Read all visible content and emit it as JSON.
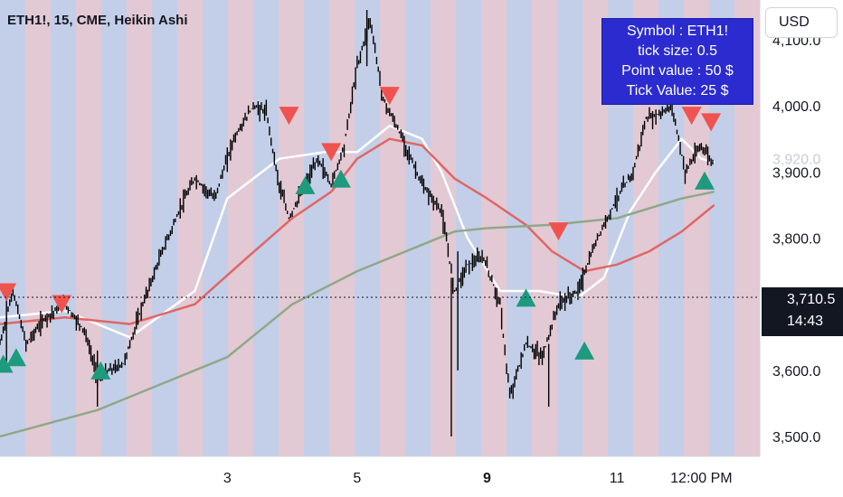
{
  "header": {
    "symbol": "ETH1!, 15, CME, Heikin Ashi",
    "currency": "USD"
  },
  "info_box": {
    "lines": [
      "Symbol : ETH1!",
      "tick size: 0.5",
      "Point value : 50 $",
      "Tick Value: 25 $"
    ],
    "background": "#2b2bd0"
  },
  "last_price": {
    "price": "3,710.5",
    "countdown": "14:43"
  },
  "ghost_label": "3,920.0",
  "colors": {
    "blue_band": "#c3cfe8",
    "red_band": "#e3c9d3",
    "candles": "#000000",
    "white_ma": "#ffffff",
    "red_ma": "#e06666",
    "green_ma": "#8fa889",
    "buy_arrow": "#1e9a7e",
    "sell_arrow": "#ef5350"
  },
  "chart_data": {
    "type": "line",
    "title": "ETH1!, 15, CME, Heikin Ashi",
    "yaxis": {
      "ticks": [
        3500,
        3600,
        3700,
        3800,
        3900,
        4000,
        4100
      ],
      "tick_labels": [
        "3,500.0",
        "3,600.0",
        "",
        "3,800.0",
        "3,900.0",
        "4,000.0",
        "4,100.0"
      ],
      "range": [
        3470,
        4160
      ]
    },
    "xaxis": {
      "ticks": [
        {
          "t": 3,
          "label": "3",
          "bold": false
        },
        {
          "t": 5,
          "label": "5",
          "bold": false
        },
        {
          "t": 7,
          "label": "9",
          "bold": true
        },
        {
          "t": 9,
          "label": "11",
          "bold": false
        },
        {
          "t": 10.3,
          "label": "12:00 PM",
          "bold": false
        }
      ],
      "range": [
        -0.5,
        11.2
      ]
    },
    "price_line": 3710.5,
    "bands": [
      "b",
      "r",
      "b",
      "r",
      "b",
      "r",
      "b",
      "r",
      "b",
      "r",
      "b",
      "r",
      "b",
      "r",
      "b",
      "r",
      "b",
      "r",
      "b",
      "r",
      "b",
      "r",
      "b",
      "r",
      "b",
      "r",
      "b",
      "r",
      "b",
      "r"
    ],
    "price_path": [
      {
        "t": -0.5,
        "v": 3640
      },
      {
        "t": -0.3,
        "v": 3720
      },
      {
        "t": -0.1,
        "v": 3640
      },
      {
        "t": 0.2,
        "v": 3680
      },
      {
        "t": 0.5,
        "v": 3700
      },
      {
        "t": 0.8,
        "v": 3660
      },
      {
        "t": 1.0,
        "v": 3590
      },
      {
        "t": 1.4,
        "v": 3610
      },
      {
        "t": 1.7,
        "v": 3700
      },
      {
        "t": 2.0,
        "v": 3780
      },
      {
        "t": 2.3,
        "v": 3850
      },
      {
        "t": 2.5,
        "v": 3890
      },
      {
        "t": 2.8,
        "v": 3860
      },
      {
        "t": 3.1,
        "v": 3950
      },
      {
        "t": 3.4,
        "v": 4000
      },
      {
        "t": 3.6,
        "v": 3990
      },
      {
        "t": 3.8,
        "v": 3880
      },
      {
        "t": 3.95,
        "v": 3830
      },
      {
        "t": 4.2,
        "v": 3880
      },
      {
        "t": 4.4,
        "v": 3920
      },
      {
        "t": 4.6,
        "v": 3880
      },
      {
        "t": 4.8,
        "v": 3940
      },
      {
        "t": 5.0,
        "v": 4060
      },
      {
        "t": 5.2,
        "v": 4130
      },
      {
        "t": 5.4,
        "v": 4010
      },
      {
        "t": 5.7,
        "v": 3950
      },
      {
        "t": 6.0,
        "v": 3880
      },
      {
        "t": 6.3,
        "v": 3840
      },
      {
        "t": 6.5,
        "v": 3720
      },
      {
        "t": 6.7,
        "v": 3760
      },
      {
        "t": 6.95,
        "v": 3770
      },
      {
        "t": 7.2,
        "v": 3700
      },
      {
        "t": 7.35,
        "v": 3560
      },
      {
        "t": 7.6,
        "v": 3640
      },
      {
        "t": 7.85,
        "v": 3620
      },
      {
        "t": 8.1,
        "v": 3700
      },
      {
        "t": 8.4,
        "v": 3720
      },
      {
        "t": 8.7,
        "v": 3800
      },
      {
        "t": 9.0,
        "v": 3860
      },
      {
        "t": 9.25,
        "v": 3900
      },
      {
        "t": 9.45,
        "v": 3980
      },
      {
        "t": 9.7,
        "v": 3990
      },
      {
        "t": 9.85,
        "v": 4000
      },
      {
        "t": 10.05,
        "v": 3900
      },
      {
        "t": 10.3,
        "v": 3940
      },
      {
        "t": 10.5,
        "v": 3910
      }
    ],
    "spikes": [
      {
        "t": -0.4,
        "lo": 3600,
        "hi": 3730
      },
      {
        "t": 1.0,
        "lo": 3545,
        "hi": 3630
      },
      {
        "t": 6.55,
        "lo": 3600,
        "hi": 3780
      },
      {
        "t": 6.45,
        "lo": 3500,
        "hi": 3740
      },
      {
        "t": 7.95,
        "lo": 3545,
        "hi": 3640
      },
      {
        "t": 5.15,
        "lo": 4060,
        "hi": 4145
      }
    ],
    "series": [
      {
        "values": [
          [
            -0.5,
            3680
          ],
          [
            0.5,
            3690
          ],
          [
            1.5,
            3650
          ],
          [
            2.5,
            3720
          ],
          [
            3.0,
            3860
          ],
          [
            3.8,
            3920
          ],
          [
            4.5,
            3930
          ],
          [
            5.0,
            3930
          ],
          [
            5.5,
            3970
          ],
          [
            6.0,
            3950
          ],
          [
            6.3,
            3900
          ],
          [
            6.7,
            3800
          ],
          [
            7.2,
            3720
          ],
          [
            7.8,
            3720
          ],
          [
            8.4,
            3710
          ],
          [
            8.8,
            3740
          ],
          [
            9.2,
            3840
          ],
          [
            9.6,
            3900
          ],
          [
            10.0,
            3950
          ],
          [
            10.3,
            3920
          ],
          [
            10.5,
            3915
          ]
        ]
      },
      {
        "values": [
          [
            -0.5,
            3670
          ],
          [
            0.5,
            3680
          ],
          [
            1.5,
            3670
          ],
          [
            2.5,
            3700
          ],
          [
            3.3,
            3770
          ],
          [
            4.0,
            3830
          ],
          [
            4.6,
            3870
          ],
          [
            5.0,
            3920
          ],
          [
            5.5,
            3950
          ],
          [
            6.0,
            3940
          ],
          [
            6.5,
            3890
          ],
          [
            7.0,
            3860
          ],
          [
            7.6,
            3820
          ],
          [
            8.0,
            3780
          ],
          [
            8.5,
            3750
          ],
          [
            9.0,
            3760
          ],
          [
            9.5,
            3780
          ],
          [
            10.0,
            3810
          ],
          [
            10.5,
            3850
          ]
        ]
      },
      {
        "values": [
          [
            -0.5,
            3500
          ],
          [
            1.0,
            3540
          ],
          [
            2.0,
            3580
          ],
          [
            3.0,
            3620
          ],
          [
            4.0,
            3700
          ],
          [
            5.0,
            3750
          ],
          [
            6.0,
            3790
          ],
          [
            6.5,
            3810
          ],
          [
            7.0,
            3815
          ],
          [
            8.0,
            3820
          ],
          [
            9.0,
            3830
          ],
          [
            10.0,
            3860
          ],
          [
            10.5,
            3870
          ]
        ]
      }
    ],
    "buy_signals": [
      [
        -0.45,
        3610
      ],
      [
        -0.25,
        3620
      ],
      [
        1.05,
        3600
      ],
      [
        4.2,
        3880
      ],
      [
        4.75,
        3890
      ],
      [
        7.6,
        3710
      ],
      [
        8.5,
        3630
      ],
      [
        10.35,
        3887
      ]
    ],
    "sell_signals": [
      [
        -0.4,
        3718
      ],
      [
        0.45,
        3700
      ],
      [
        3.95,
        3985
      ],
      [
        4.6,
        3930
      ],
      [
        5.5,
        4015
      ],
      [
        8.1,
        3810
      ],
      [
        10.15,
        3985
      ],
      [
        10.45,
        3975
      ]
    ]
  }
}
